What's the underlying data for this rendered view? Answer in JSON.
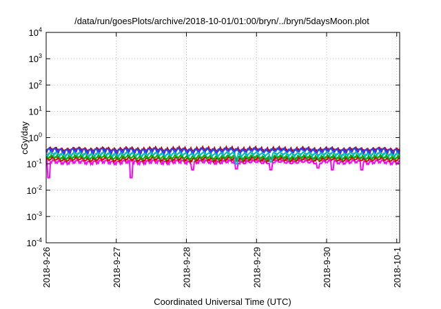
{
  "chart_data": {
    "type": "line",
    "title": "/data/run/goesPlots/archive/2018-10-01/01:00/bryn/../bryn/5daysMoon.plot",
    "xlabel": "Coordinated Universal Time (UTC)",
    "ylabel": "cGy/day",
    "yscale": "log",
    "ylim": [
      0.0001,
      10000
    ],
    "y_ticks": [
      {
        "value": 0.0001,
        "base": "10",
        "exp": "-4"
      },
      {
        "value": 0.001,
        "base": "10",
        "exp": "-3"
      },
      {
        "value": 0.01,
        "base": "10",
        "exp": "-2"
      },
      {
        "value": 0.1,
        "base": "10",
        "exp": "-1"
      },
      {
        "value": 1,
        "base": "10",
        "exp": "0"
      },
      {
        "value": 10,
        "base": "10",
        "exp": "1"
      },
      {
        "value": 100,
        "base": "10",
        "exp": "2"
      },
      {
        "value": 1000,
        "base": "10",
        "exp": "3"
      },
      {
        "value": 10000,
        "base": "10",
        "exp": "4"
      }
    ],
    "xlim": [
      "2018-09-26T00:00",
      "2018-10-01T01:00"
    ],
    "x_ticks": [
      "2018-9-26",
      "2018-9-27",
      "2018-9-28",
      "2018-9-29",
      "2018-9-30",
      "2018-10-1"
    ],
    "grid": true,
    "series": [
      {
        "color": "#ff00ff",
        "base": 0.12,
        "dips": [
          [
            "2018-09-26T01:00",
            0.03
          ],
          [
            "2018-09-27T05:00",
            0.03
          ],
          [
            "2018-09-28T02:00",
            0.06
          ],
          [
            "2018-09-28T17:00",
            0.065
          ],
          [
            "2018-09-29T05:00",
            0.06
          ],
          [
            "2018-09-30T12:00",
            0.06
          ],
          [
            "2018-09-29T21:00",
            0.07
          ],
          [
            "2018-09-30T02:00",
            0.06
          ]
        ]
      },
      {
        "color": "#dd0000",
        "base": 0.15,
        "dips": []
      },
      {
        "color": "#00aa00",
        "base": 0.18,
        "dips": []
      },
      {
        "color": "#00bbbb",
        "base": 0.24,
        "dips": [
          [
            "2018-09-28T17:00",
            0.1
          ],
          [
            "2018-09-29T05:00",
            0.12
          ]
        ]
      },
      {
        "color": "#cc0000",
        "base": 0.36,
        "dips": []
      },
      {
        "color": "#2244ff",
        "base": 0.33,
        "dips": []
      }
    ]
  }
}
